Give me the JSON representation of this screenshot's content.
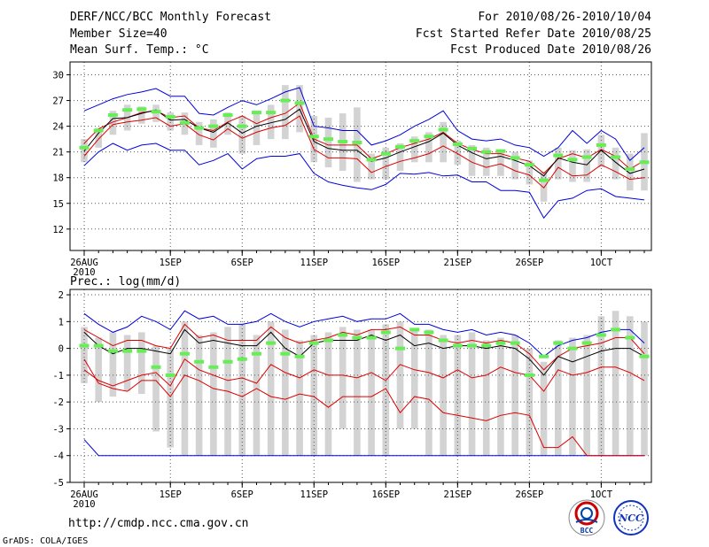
{
  "header": {
    "left_line1": "DERF/NCC/BCC Monthly Forecast",
    "left_line2": "Member Size=40",
    "left_line3": "Mean Surf. Temp.: °C",
    "right_line1": "For 2010/08/26-2010/10/04",
    "right_line2": "Fcst Started Refer Date 2010/08/25",
    "right_line3": "Fcst Produced Date 2010/08/26"
  },
  "footer": {
    "url": "http://cmdp.ncc.cma.gov.cn",
    "grads": "GrADS: COLA/IGES",
    "logo_bcc": "BCC",
    "logo_ncc": "NCC"
  },
  "colors": {
    "box": "#d3d3d3",
    "median": "#66ee55",
    "mean": "#000000",
    "spread": "#dd0000",
    "extreme": "#0000dd",
    "grid": "#555555"
  },
  "chart_data": [
    {
      "type": "box",
      "id": "temp",
      "title": "Mean Surf. Temp.: °C",
      "x_days": 40,
      "xtick_days": [
        0,
        6,
        11,
        16,
        21,
        26,
        31,
        36
      ],
      "xtick_labels": [
        "26AUG",
        "1SEP",
        "6SEP",
        "11SEP",
        "16SEP",
        "21SEP",
        "26SEP",
        "1OCT"
      ],
      "xtick_sub": "2010",
      "ylim": [
        9.5,
        31.5
      ],
      "yticks": [
        12,
        15,
        18,
        21,
        24,
        27,
        30
      ],
      "grid": true,
      "series": {
        "max": [
          25.8,
          26.5,
          27.2,
          27.7,
          28.0,
          28.4,
          27.5,
          27.5,
          25.5,
          25.3,
          26.2,
          27.0,
          26.5,
          27.2,
          28.0,
          28.5,
          24.0,
          23.8,
          23.5,
          23.5,
          21.8,
          22.3,
          23.0,
          24.0,
          24.8,
          25.8,
          23.5,
          22.5,
          22.3,
          22.5,
          21.8,
          21.5,
          20.5,
          21.5,
          23.5,
          22.0,
          23.5,
          22.5,
          20.0,
          21.5
        ],
        "upper": [
          22.0,
          23.7,
          24.5,
          25.0,
          25.6,
          25.8,
          25.0,
          25.2,
          23.8,
          23.5,
          24.5,
          25.2,
          24.3,
          25.0,
          25.5,
          26.7,
          22.5,
          21.8,
          21.8,
          21.8,
          20.2,
          20.8,
          21.5,
          22.0,
          22.5,
          23.3,
          22.0,
          21.3,
          20.8,
          20.8,
          20.3,
          19.9,
          18.5,
          20.2,
          20.8,
          20.3,
          21.3,
          20.5,
          19.0,
          20.0
        ],
        "mean": [
          21.1,
          23.2,
          24.9,
          25.0,
          25.5,
          25.9,
          24.7,
          24.8,
          23.8,
          23.3,
          24.4,
          23.2,
          24.0,
          24.4,
          24.8,
          26.0,
          22.2,
          21.4,
          21.2,
          21.2,
          19.9,
          20.3,
          21.0,
          21.6,
          22.2,
          23.2,
          21.8,
          20.9,
          20.2,
          20.5,
          20.0,
          19.4,
          18.2,
          20.3,
          19.8,
          19.5,
          21.2,
          19.8,
          18.5,
          19.0
        ],
        "lower": [
          20.5,
          22.5,
          24.2,
          24.5,
          24.7,
          25.0,
          24.0,
          24.3,
          23.0,
          22.4,
          23.7,
          22.6,
          23.3,
          23.8,
          24.1,
          25.2,
          21.3,
          20.3,
          20.3,
          20.2,
          18.6,
          19.3,
          19.9,
          20.3,
          20.8,
          21.7,
          20.8,
          19.8,
          19.2,
          19.6,
          18.8,
          18.3,
          16.8,
          19.2,
          18.2,
          18.3,
          19.5,
          18.7,
          17.8,
          18.0
        ],
        "min": [
          19.4,
          21.0,
          22.0,
          21.2,
          21.8,
          22.0,
          21.2,
          21.2,
          19.5,
          20.0,
          20.8,
          19.0,
          20.2,
          20.5,
          20.5,
          20.8,
          18.5,
          17.5,
          17.1,
          16.8,
          16.6,
          17.2,
          18.5,
          18.4,
          18.6,
          18.2,
          18.3,
          17.5,
          17.5,
          16.5,
          16.5,
          16.3,
          13.3,
          15.3,
          15.6,
          16.5,
          16.7,
          15.8,
          15.6,
          15.4
        ],
        "box_hi": [
          22.5,
          23.8,
          25.8,
          26.5,
          26.3,
          26.5,
          25.6,
          25.6,
          24.5,
          24.8,
          25.6,
          25.2,
          25.8,
          26.5,
          28.8,
          28.8,
          25.2,
          25.0,
          25.5,
          26.2,
          20.8,
          21.5,
          22.0,
          22.8,
          23.3,
          24.5,
          22.3,
          21.8,
          21.5,
          21.2,
          21.0,
          20.0,
          18.7,
          21.5,
          21.2,
          21.3,
          23.0,
          21.5,
          20.8,
          23.2
        ],
        "box_lo": [
          19.8,
          21.5,
          23.0,
          23.5,
          24.3,
          24.5,
          23.5,
          23.0,
          21.8,
          21.5,
          23.0,
          20.8,
          21.8,
          22.5,
          22.5,
          23.3,
          19.8,
          19.2,
          18.8,
          17.5,
          17.8,
          17.8,
          18.8,
          19.8,
          19.8,
          19.8,
          19.5,
          18.2,
          18.2,
          18.2,
          17.8,
          17.2,
          15.2,
          17.8,
          17.5,
          17.5,
          19.2,
          17.8,
          16.5,
          16.5
        ],
        "median": [
          21.5,
          23.5,
          25.3,
          25.9,
          26.0,
          25.7,
          25.1,
          24.4,
          23.8,
          24.0,
          25.3,
          24.0,
          25.6,
          25.6,
          27.0,
          26.7,
          22.8,
          22.5,
          22.2,
          22.1,
          20.1,
          20.8,
          21.6,
          22.3,
          22.8,
          23.6,
          21.9,
          21.4,
          21.0,
          21.1,
          20.3,
          19.5,
          17.7,
          20.6,
          20.1,
          20.4,
          21.8,
          20.4,
          19.0,
          19.8
        ]
      }
    },
    {
      "type": "box",
      "id": "prec",
      "title": "Prec.: log(mm/d)",
      "x_days": 40,
      "xtick_days": [
        0,
        6,
        11,
        16,
        21,
        26,
        31,
        36
      ],
      "xtick_labels": [
        "26AUG",
        "1SEP",
        "6SEP",
        "11SEP",
        "16SEP",
        "21SEP",
        "26SEP",
        "1OCT"
      ],
      "xtick_sub": "2010",
      "ylim": [
        -5,
        2.2
      ],
      "yticks": [
        -5,
        -4,
        -3,
        -2,
        -1,
        0,
        1,
        2
      ],
      "grid": true,
      "series": {
        "max": [
          1.3,
          0.9,
          0.6,
          0.8,
          1.2,
          1.0,
          0.7,
          1.4,
          1.1,
          1.2,
          0.9,
          0.9,
          1.0,
          1.3,
          1.0,
          0.8,
          1.0,
          1.1,
          1.2,
          1.0,
          1.1,
          1.1,
          1.3,
          0.9,
          0.9,
          0.7,
          0.6,
          0.7,
          0.5,
          0.6,
          0.5,
          0.2,
          -0.3,
          0.1,
          0.3,
          0.4,
          0.6,
          0.7,
          0.7,
          0.2
        ],
        "upper": [
          0.7,
          0.4,
          0.1,
          0.3,
          0.3,
          0.1,
          0.0,
          0.9,
          0.4,
          0.5,
          0.3,
          0.3,
          0.3,
          0.8,
          0.4,
          0.2,
          0.3,
          0.4,
          0.6,
          0.5,
          0.7,
          0.7,
          0.8,
          0.5,
          0.5,
          0.3,
          0.2,
          0.3,
          0.2,
          0.3,
          0.2,
          -0.2,
          -0.8,
          -0.3,
          0.0,
          0.1,
          0.2,
          0.4,
          0.4,
          -0.2
        ],
        "mean": [
          0.6,
          0.1,
          -0.2,
          0.0,
          0.0,
          -0.1,
          -0.2,
          0.7,
          0.2,
          0.3,
          0.2,
          0.1,
          0.1,
          0.6,
          0.0,
          -0.3,
          0.2,
          0.3,
          0.3,
          0.3,
          0.5,
          0.3,
          0.5,
          0.1,
          0.2,
          0.0,
          0.1,
          0.1,
          0.0,
          0.1,
          0.0,
          -0.4,
          -1.0,
          -0.3,
          -0.5,
          -0.3,
          -0.1,
          0.0,
          0.0,
          -0.3
        ],
        "lower": [
          -0.8,
          -1.2,
          -1.4,
          -1.2,
          -1.0,
          -0.9,
          -1.4,
          -0.4,
          -0.8,
          -1.0,
          -1.2,
          -1.1,
          -1.3,
          -0.6,
          -0.9,
          -1.1,
          -0.8,
          -1.0,
          -1.0,
          -1.1,
          -0.9,
          -1.2,
          -0.6,
          -0.8,
          -0.9,
          -1.1,
          -0.8,
          -1.1,
          -1.0,
          -0.7,
          -0.9,
          -1.0,
          -1.6,
          -0.8,
          -1.0,
          -0.9,
          -0.7,
          -0.7,
          -0.9,
          -1.2
        ],
        "spread_low": [
          -0.4,
          -1.3,
          -1.5,
          -1.6,
          -1.2,
          -1.2,
          -1.8,
          -1.0,
          -1.2,
          -1.5,
          -1.6,
          -1.8,
          -1.5,
          -1.8,
          -1.9,
          -1.7,
          -1.8,
          -2.2,
          -1.8,
          -1.8,
          -1.8,
          -1.5,
          -2.4,
          -1.8,
          -1.9,
          -2.4,
          -2.5,
          -2.6,
          -2.7,
          -2.5,
          -2.4,
          -2.5,
          -3.7,
          -3.7,
          -3.3,
          -4.0,
          -4.0,
          -4.0,
          -4.0,
          -4.0
        ],
        "min": [
          -3.4,
          -4.0,
          -4.0,
          -4.0,
          -4.0,
          -4.0,
          -4.0,
          -4.0,
          -4.0,
          -4.0,
          -4.0,
          -4.0,
          -4.0,
          -4.0,
          -4.0,
          -4.0,
          -4.0,
          -4.0,
          -4.0,
          -4.0,
          -4.0,
          -4.0,
          -4.0,
          -4.0,
          -4.0,
          -4.0,
          -4.0,
          -4.0,
          -4.0,
          -4.0,
          -4.0,
          -4.0,
          -4.0,
          -4.0,
          -4.0,
          -4.0,
          -4.0,
          -4.0,
          -4.0,
          -4.0
        ],
        "box_hi": [
          0.8,
          0.4,
          0.6,
          0.5,
          0.6,
          0.1,
          0.0,
          1.0,
          0.5,
          0.6,
          0.8,
          0.9,
          0.5,
          1.0,
          0.7,
          0.3,
          0.5,
          0.6,
          0.8,
          0.7,
          0.7,
          0.9,
          1.0,
          0.7,
          0.7,
          0.5,
          0.5,
          0.6,
          0.3,
          0.4,
          0.5,
          0.0,
          -0.5,
          0.3,
          0.4,
          0.5,
          1.2,
          1.4,
          1.2,
          1.0
        ],
        "box_lo": [
          -1.3,
          -2.0,
          -1.8,
          -1.6,
          -1.7,
          -3.1,
          -3.7,
          -4.0,
          -4.0,
          -4.0,
          -4.0,
          -4.0,
          -4.0,
          -4.0,
          -4.0,
          -4.0,
          -4.0,
          -4.0,
          -3.0,
          -4.0,
          -4.0,
          -4.0,
          -3.0,
          -3.0,
          -4.0,
          -4.0,
          -4.0,
          -4.0,
          -4.0,
          -4.0,
          -4.0,
          -4.0,
          -4.0,
          -4.0,
          -4.0,
          -4.0,
          -4.0,
          -4.0,
          -4.0,
          -4.0
        ],
        "median": [
          0.1,
          0.1,
          -0.1,
          -0.1,
          -0.1,
          -0.7,
          -1.0,
          -0.2,
          -0.5,
          -0.7,
          -0.5,
          -0.4,
          -0.2,
          0.2,
          -0.2,
          -0.3,
          0.2,
          0.3,
          0.5,
          0.4,
          0.4,
          0.6,
          0.0,
          0.7,
          0.6,
          0.3,
          0.1,
          0.1,
          0.1,
          0.2,
          0.2,
          -1.0,
          -0.3,
          0.2,
          0.0,
          0.2,
          0.5,
          0.7,
          0.4,
          -0.3
        ]
      }
    }
  ]
}
